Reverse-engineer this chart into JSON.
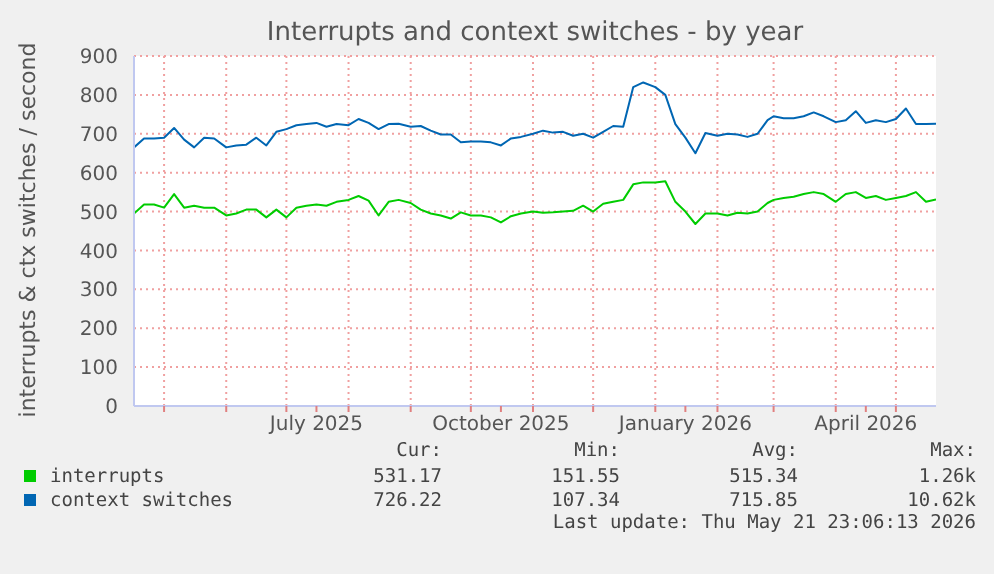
{
  "chart_data": {
    "type": "line",
    "title": "Interrupts and context switches - by year",
    "ylabel": "interrupts & ctx switches / second",
    "x": [
      "2025-04-16",
      "2025-04-21",
      "2025-04-26",
      "2025-05-01",
      "2025-05-06",
      "2025-05-11",
      "2025-05-16",
      "2025-05-21",
      "2025-05-26",
      "2025-06-01",
      "2025-06-06",
      "2025-06-11",
      "2025-06-16",
      "2025-06-21",
      "2025-06-26",
      "2025-07-01",
      "2025-07-06",
      "2025-07-11",
      "2025-07-16",
      "2025-07-21",
      "2025-07-26",
      "2025-08-01",
      "2025-08-06",
      "2025-08-11",
      "2025-08-16",
      "2025-08-21",
      "2025-08-26",
      "2025-09-01",
      "2025-09-06",
      "2025-09-11",
      "2025-09-16",
      "2025-09-21",
      "2025-09-26",
      "2025-10-01",
      "2025-10-06",
      "2025-10-11",
      "2025-10-16",
      "2025-10-21",
      "2025-10-26",
      "2025-11-01",
      "2025-11-06",
      "2025-11-11",
      "2025-11-16",
      "2025-11-21",
      "2025-11-26",
      "2025-12-01",
      "2025-12-06",
      "2025-12-11",
      "2025-12-16",
      "2025-12-21",
      "2025-12-26",
      "2026-01-01",
      "2026-01-06",
      "2026-01-11",
      "2026-01-16",
      "2026-01-21",
      "2026-01-26",
      "2026-02-01",
      "2026-02-06",
      "2026-02-11",
      "2026-02-16",
      "2026-02-21",
      "2026-02-26",
      "2026-03-01",
      "2026-03-06",
      "2026-03-11",
      "2026-03-16",
      "2026-03-21",
      "2026-03-26",
      "2026-04-01",
      "2026-04-06",
      "2026-04-11",
      "2026-04-16",
      "2026-04-21",
      "2026-04-26",
      "2026-05-01",
      "2026-05-06",
      "2026-05-11",
      "2026-05-16",
      "2026-05-21"
    ],
    "series": [
      {
        "name": "interrupts",
        "color": "#00cc00",
        "values": [
          495,
          518,
          518,
          510,
          545,
          510,
          515,
          510,
          510,
          490,
          495,
          505,
          505,
          485,
          505,
          485,
          510,
          515,
          518,
          515,
          525,
          530,
          540,
          528,
          490,
          525,
          530,
          522,
          505,
          495,
          490,
          482,
          498,
          490,
          490,
          485,
          472,
          488,
          495,
          500,
          497,
          498,
          500,
          502,
          515,
          500,
          520,
          525,
          530,
          570,
          575,
          575,
          578,
          525,
          500,
          468,
          495,
          495,
          490,
          497,
          495,
          500,
          522,
          530,
          535,
          538,
          545,
          550,
          545,
          525,
          545,
          550,
          535,
          540,
          530,
          535,
          540,
          550,
          525,
          531
        ]
      },
      {
        "name": "context switches",
        "color": "#0066b3",
        "values": [
          665,
          688,
          688,
          690,
          715,
          685,
          665,
          690,
          688,
          665,
          670,
          672,
          690,
          670,
          705,
          712,
          722,
          725,
          728,
          718,
          725,
          722,
          738,
          728,
          712,
          725,
          726,
          718,
          720,
          708,
          698,
          698,
          678,
          680,
          680,
          678,
          670,
          688,
          692,
          700,
          708,
          703,
          705,
          695,
          700,
          690,
          705,
          720,
          718,
          820,
          832,
          820,
          800,
          725,
          690,
          650,
          702,
          695,
          700,
          698,
          692,
          700,
          735,
          745,
          740,
          740,
          745,
          755,
          745,
          730,
          735,
          758,
          728,
          735,
          730,
          738,
          765,
          725,
          725,
          726
        ]
      }
    ],
    "xlim": [
      "2025-04-16",
      "2026-05-21"
    ],
    "xticks": [
      {
        "value": "2025-05-01",
        "label": null
      },
      {
        "value": "2025-06-01",
        "label": null
      },
      {
        "value": "2025-07-01",
        "label": null
      },
      {
        "value": "2025-07-16",
        "label": "July 2025"
      },
      {
        "value": "2025-08-01",
        "label": null
      },
      {
        "value": "2025-09-01",
        "label": null
      },
      {
        "value": "2025-10-01",
        "label": null
      },
      {
        "value": "2025-10-16",
        "label": "October 2025"
      },
      {
        "value": "2025-11-01",
        "label": null
      },
      {
        "value": "2025-12-01",
        "label": null
      },
      {
        "value": "2026-01-01",
        "label": null
      },
      {
        "value": "2026-01-16",
        "label": "January 2026"
      },
      {
        "value": "2026-02-01",
        "label": null
      },
      {
        "value": "2026-03-01",
        "label": null
      },
      {
        "value": "2026-04-01",
        "label": null
      },
      {
        "value": "2026-04-16",
        "label": "April 2026"
      },
      {
        "value": "2026-05-01",
        "label": null
      }
    ],
    "ylim": [
      0,
      900
    ],
    "yticks": [
      0,
      100,
      200,
      300,
      400,
      500,
      600,
      700,
      800,
      900
    ],
    "grid": true,
    "legend": "bottom",
    "annotations": [
      "Cur:",
      "Min:",
      "Avg:",
      "Max:",
      "531.17",
      "151.55",
      "515.34",
      "1.26k",
      "726.22",
      "107.34",
      "715.85",
      "10.62k",
      "Last update: Thu May 21 23:06:13 2026"
    ]
  }
}
